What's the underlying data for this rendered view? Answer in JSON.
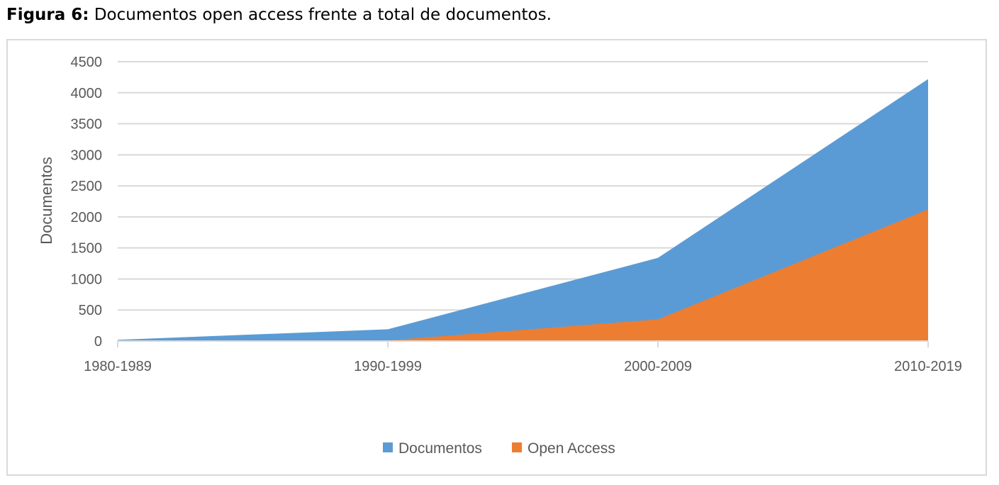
{
  "caption": {
    "label": "Figura 6:",
    "text": " Documentos open access frente a total de documentos."
  },
  "chart_data": {
    "type": "area",
    "categories": [
      "1980-1989",
      "1990-1999",
      "2000-2009",
      "2010-2019"
    ],
    "series": [
      {
        "name": "Documentos",
        "values": [
          20,
          190,
          1340,
          4220
        ],
        "color": "#5b9bd5"
      },
      {
        "name": "Open Access",
        "values": [
          0,
          10,
          350,
          2120
        ],
        "color": "#ed7d31"
      }
    ],
    "ylabel": "Documentos",
    "xlabel": "",
    "ylim": [
      0,
      4500
    ],
    "yticks": [
      0,
      500,
      1000,
      1500,
      2000,
      2500,
      3000,
      3500,
      4000,
      4500
    ],
    "grid": true,
    "legend_position": "bottom"
  }
}
